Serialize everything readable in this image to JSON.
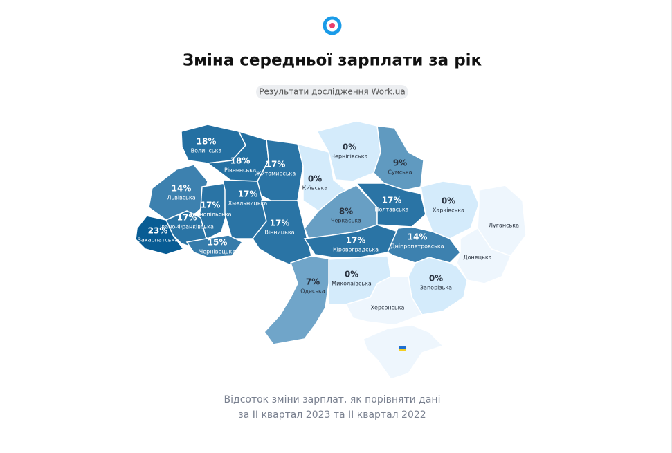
{
  "header": {
    "title": "Зміна середньої зарплати за рік",
    "badge": "Результати дослідження Work.ua"
  },
  "map": {
    "regions": [
      {
        "name": "Волинська",
        "value": 18,
        "value_label": "18%"
      },
      {
        "name": "Рівненська",
        "value": 18,
        "value_label": "18%"
      },
      {
        "name": "Житомирська",
        "value": 17,
        "value_label": "17%"
      },
      {
        "name": "Львівська",
        "value": 14,
        "value_label": "14%"
      },
      {
        "name": "Тернопільська",
        "value": 17,
        "value_label": "17%"
      },
      {
        "name": "Хмельницька",
        "value": 17,
        "value_label": "17%"
      },
      {
        "name": "Івано-Франківська",
        "value": 17,
        "value_label": "17%"
      },
      {
        "name": "Закарпатська",
        "value": 23,
        "value_label": "23%"
      },
      {
        "name": "Чернівецька",
        "value": 15,
        "value_label": "15%"
      },
      {
        "name": "Вінницька",
        "value": 17,
        "value_label": "17%"
      },
      {
        "name": "Київська",
        "value": 0,
        "value_label": "0%"
      },
      {
        "name": "Чернігівська",
        "value": 0,
        "value_label": "0%"
      },
      {
        "name": "Сумська",
        "value": 9,
        "value_label": "9%"
      },
      {
        "name": "Черкаська",
        "value": 8,
        "value_label": "8%"
      },
      {
        "name": "Полтавська",
        "value": 17,
        "value_label": "17%"
      },
      {
        "name": "Харківська",
        "value": 0,
        "value_label": "0%"
      },
      {
        "name": "Луганська"
      },
      {
        "name": "Кіровоградська",
        "value": 17,
        "value_label": "17%"
      },
      {
        "name": "Дніпропетровська",
        "value": 14,
        "value_label": "14%"
      },
      {
        "name": "Донецька"
      },
      {
        "name": "Одеська",
        "value": 7,
        "value_label": "7%"
      },
      {
        "name": "Миколаївська",
        "value": 0,
        "value_label": "0%"
      },
      {
        "name": "Запорізька",
        "value": 0,
        "value_label": "0%"
      },
      {
        "name": "Херсонська"
      }
    ]
  },
  "footer": {
    "lines": [
      "Відсоток зміни зарплат, як порівняти дані",
      "за II квартал 2023 та II квартал 2022"
    ]
  }
}
